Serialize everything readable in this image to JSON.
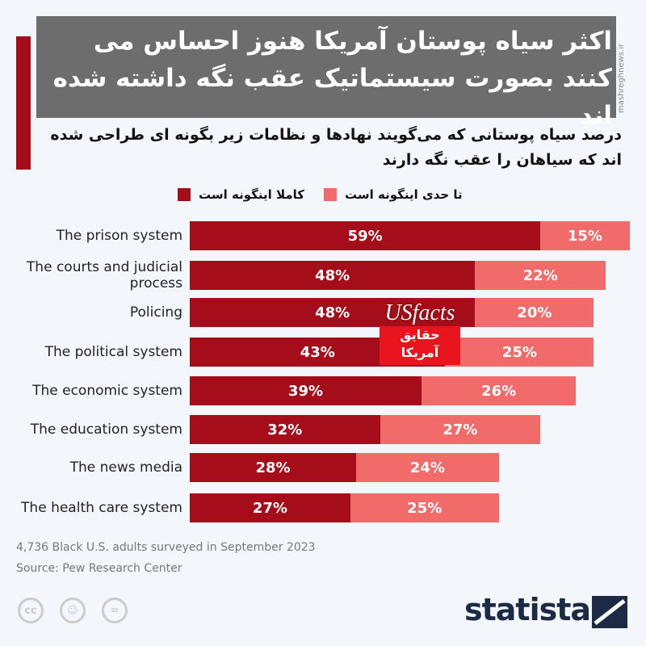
{
  "header": {
    "title": "اکثر سیاه پوستان آمریکا هنوز احساس می کنند بصورت سیستماتیک عقب نگه داشته شده اند",
    "subtitle": "درصد سیاه پوستانی که می‌گویند نهادها و نظامات زیر بگونه ای طراحی شده اند که سیاهان را عقب نگه دارند",
    "watermark": "mashreghnews.ir"
  },
  "chart_data": {
    "type": "bar",
    "orientation": "horizontal",
    "stacked": true,
    "categories": [
      "The prison system",
      "The courts and judicial process",
      "Policing",
      "The political system",
      "The economic system",
      "The education system",
      "The news media",
      "The health care system"
    ],
    "series": [
      {
        "name": "کاملا اینگونه است",
        "color": "#a50d1a",
        "values": [
          59,
          48,
          48,
          43,
          39,
          32,
          28,
          27
        ]
      },
      {
        "name": "تا حدی اینگونه است",
        "color": "#f26b6b",
        "values": [
          15,
          22,
          20,
          25,
          26,
          27,
          24,
          25
        ]
      }
    ],
    "value_suffix": "%",
    "grid": false,
    "legend": "top"
  },
  "footer": {
    "note": "4,736 Black U.S. adults surveyed in September 2023",
    "source": "Source: Pew Research Center",
    "brand": "statista"
  },
  "logo": {
    "name": "USfacts",
    "sub1": "حقایق",
    "sub2": "آمریکا"
  },
  "license_icons": [
    "cc",
    "by",
    "nd"
  ]
}
